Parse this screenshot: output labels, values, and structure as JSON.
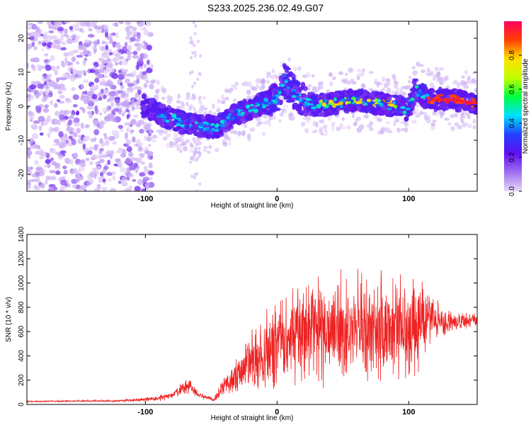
{
  "title": "S233.2025.236.02.49.G07",
  "chart_data": [
    {
      "type": "heatmap",
      "name": "spectrogram",
      "xlabel": "Height of straight line (km)",
      "ylabel": "Frequency (Hz)",
      "xlim": [
        -190,
        152
      ],
      "ylim": [
        -25,
        25
      ],
      "xticks": [
        "-100",
        "0",
        "100"
      ],
      "yticks": [
        "-20",
        "-10",
        "0",
        "10",
        "20"
      ],
      "colorbar": {
        "label": "Normalized spectral amplitude",
        "range": [
          0,
          1
        ],
        "ticks": [
          "0.0",
          "0.2",
          "0.4",
          "0.6",
          "0.8"
        ],
        "colors": [
          "#e8d8f8",
          "#a070f0",
          "#6010f0",
          "#2040ff",
          "#00e0ff",
          "#00ff40",
          "#c0ff00",
          "#ffe000",
          "#ff4000",
          "#ff0060"
        ]
      },
      "ridge": [
        {
          "x": -100,
          "f": 0
        },
        {
          "x": -85,
          "f": -3
        },
        {
          "x": -70,
          "f": -5
        },
        {
          "x": -55,
          "f": -6
        },
        {
          "x": -45,
          "f": -6
        },
        {
          "x": -30,
          "f": -2
        },
        {
          "x": -15,
          "f": 0
        },
        {
          "x": 0,
          "f": 2
        },
        {
          "x": 5,
          "f": 8
        },
        {
          "x": 15,
          "f": 3
        },
        {
          "x": 30,
          "f": 0
        },
        {
          "x": 45,
          "f": 1
        },
        {
          "x": 60,
          "f": 2
        },
        {
          "x": 75,
          "f": 1
        },
        {
          "x": 90,
          "f": 0
        },
        {
          "x": 100,
          "f": -1
        },
        {
          "x": 105,
          "f": 5
        },
        {
          "x": 115,
          "f": 2
        },
        {
          "x": 130,
          "f": 2
        },
        {
          "x": 150,
          "f": 1
        }
      ]
    },
    {
      "type": "line",
      "name": "snr",
      "xlabel": "Height of straight line (km)",
      "ylabel": "SNR (10 * v/v)",
      "xlim": [
        -190,
        152
      ],
      "ylim": [
        0,
        1400
      ],
      "xticks": [
        "-100",
        "0",
        "100"
      ],
      "yticks": [
        "0",
        "200",
        "400",
        "600",
        "800",
        "1000",
        "1200",
        "1400"
      ],
      "color": "#ee2222",
      "envelope": [
        {
          "x": -190,
          "mean": 25,
          "spread": 10
        },
        {
          "x": -120,
          "mean": 30,
          "spread": 15
        },
        {
          "x": -100,
          "mean": 40,
          "spread": 30
        },
        {
          "x": -80,
          "mean": 70,
          "spread": 60
        },
        {
          "x": -67,
          "mean": 160,
          "spread": 120
        },
        {
          "x": -60,
          "mean": 80,
          "spread": 50
        },
        {
          "x": -48,
          "mean": 40,
          "spread": 30
        },
        {
          "x": -40,
          "mean": 150,
          "spread": 150
        },
        {
          "x": -25,
          "mean": 300,
          "spread": 400
        },
        {
          "x": -10,
          "mean": 420,
          "spread": 600
        },
        {
          "x": 10,
          "mean": 550,
          "spread": 700
        },
        {
          "x": 30,
          "mean": 600,
          "spread": 800
        },
        {
          "x": 60,
          "mean": 650,
          "spread": 800
        },
        {
          "x": 85,
          "mean": 600,
          "spread": 800
        },
        {
          "x": 105,
          "mean": 680,
          "spread": 800
        },
        {
          "x": 120,
          "mean": 690,
          "spread": 300
        },
        {
          "x": 135,
          "mean": 680,
          "spread": 150
        },
        {
          "x": 152,
          "mean": 690,
          "spread": 110
        }
      ]
    }
  ]
}
